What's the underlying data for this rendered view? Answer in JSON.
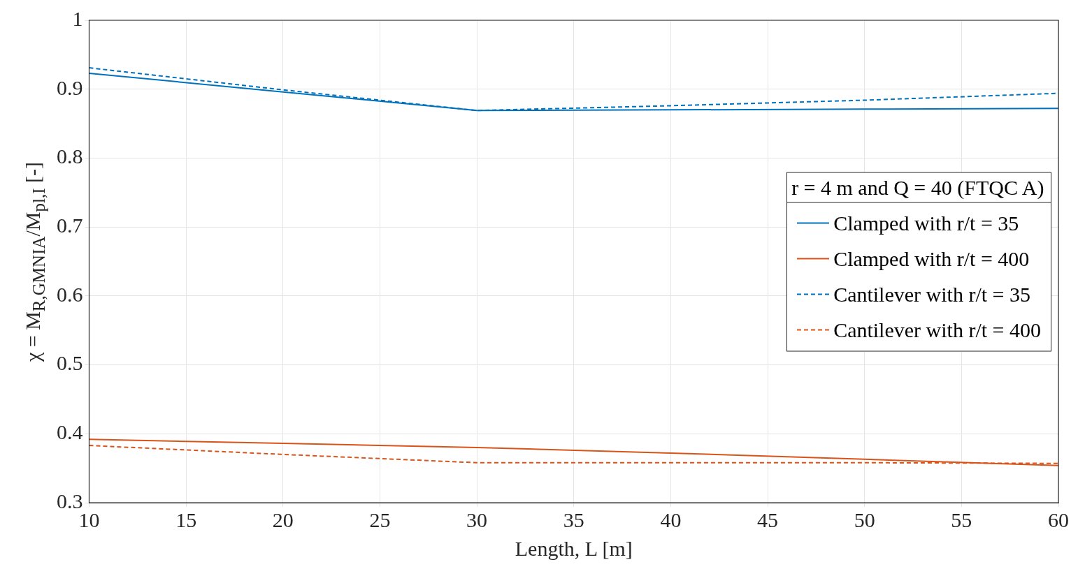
{
  "chart_data": {
    "type": "line",
    "xlabel": "Length, L [m]",
    "ylabel": "χ = M$_{R,GMNIA}$/M$_{pl,I}$ [-]",
    "legend_title": "r = 4 m and Q = 40 (FTQC A)",
    "legend": "right",
    "grid": true,
    "marker": "none",
    "x": [
      10,
      20,
      30,
      40,
      50,
      60
    ],
    "xlim": [
      10,
      60
    ],
    "xticks": [
      10,
      15,
      20,
      25,
      30,
      35,
      40,
      45,
      50,
      55,
      60
    ],
    "ylim": [
      0.3,
      1
    ],
    "yticks": [
      0.3,
      0.4,
      0.5,
      0.6,
      0.7,
      0.8,
      0.9,
      1
    ],
    "series": [
      {
        "name": "Clamped with r/t = 35",
        "color": "#0072bd",
        "line_style": "solid",
        "values": [
          0.923,
          0.896,
          0.869,
          0.87,
          0.871,
          0.872
        ]
      },
      {
        "name": "Clamped with r/t = 400",
        "color": "#d95319",
        "line_style": "solid",
        "values": [
          0.392,
          0.386,
          0.38,
          0.372,
          0.363,
          0.354
        ]
      },
      {
        "name": "Cantilever with r/t = 35",
        "color": "#0072bd",
        "line_style": "dashed",
        "values": [
          0.931,
          0.899,
          0.869,
          0.876,
          0.884,
          0.894
        ]
      },
      {
        "name": "Cantilever with r/t = 400",
        "color": "#d95319",
        "line_style": "dashed",
        "values": [
          0.383,
          0.37,
          0.358,
          0.358,
          0.358,
          0.357
        ]
      }
    ]
  }
}
